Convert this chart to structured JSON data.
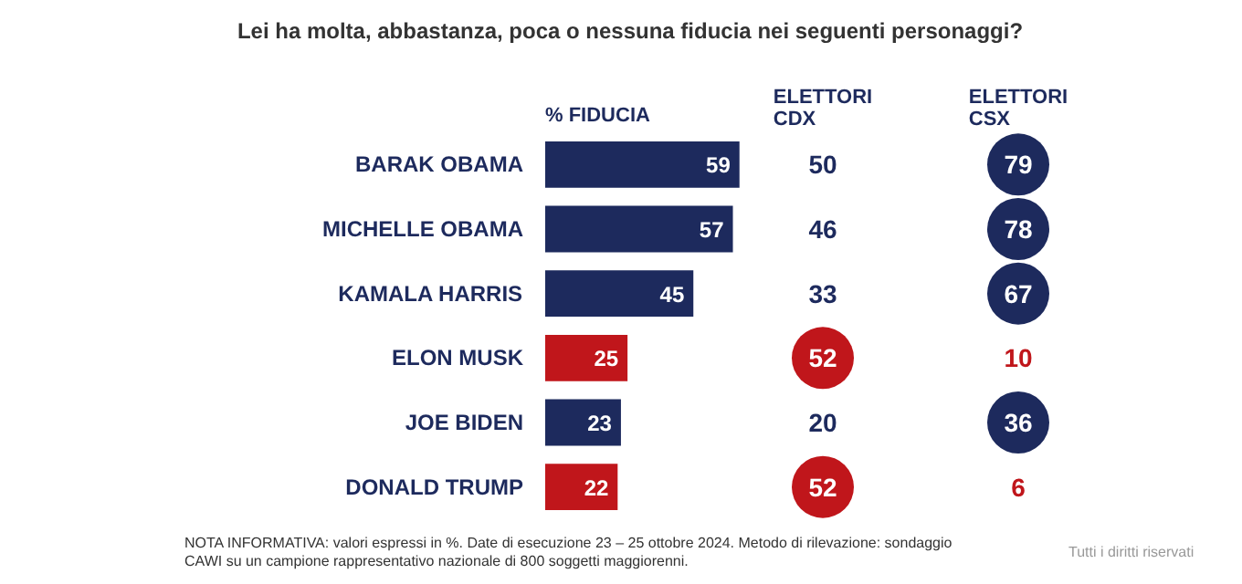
{
  "chart_data": [
    {
      "type": "bar",
      "orientation": "horizontal",
      "title": "Lei ha molta, abbastanza, poca o nessuna fiducia nei seguenti personaggi?",
      "xlabel": "% FIDUCIA",
      "categories": [
        "BARAK OBAMA",
        "MICHELLE OBAMA",
        "KAMALA HARRIS",
        "ELON MUSK",
        "JOE BIDEN",
        "DONALD TRUMP"
      ],
      "values": [
        59,
        57,
        45,
        25,
        23,
        22
      ],
      "colors": [
        "#1d2a5d",
        "#1d2a5d",
        "#1d2a5d",
        "#c0161b",
        "#1d2a5d",
        "#c0161b"
      ],
      "data_labels": true,
      "annotations": [
        "NOTA INFORMATIVA: valori espressi in %. Date di esecuzione 23 – 25 ottobre 2024. Metodo di rilevazione: sondaggio CAWI su un campione rappresentativo nazionale di 800 soggetti maggiorenni.",
        "Tutti i diritti riservati"
      ]
    },
    {
      "type": "other",
      "title": "ELETTORI\nCDX",
      "categories": [
        null,
        null,
        null,
        null,
        null,
        null
      ],
      "data_labels": true,
      "values": [
        50,
        46,
        33,
        52,
        20,
        52
      ],
      "colors": [
        "#1d2a5d",
        "#1d2a5d",
        "#1d2a5d",
        "#c0161b",
        "#1d2a5d",
        "#c0161b"
      ]
    },
    {
      "type": "other",
      "title": "ELETTORI\nCSX",
      "categories": [
        null,
        null,
        null,
        null,
        null,
        null
      ],
      "data_labels": true,
      "values": [
        79,
        78,
        67,
        10,
        36,
        6
      ],
      "colors": [
        "#1d2a5d",
        "#1d2a5d",
        "#1d2a5d",
        "#c0161b",
        "#1d2a5d",
        "#c0161b"
      ]
    }
  ]
}
